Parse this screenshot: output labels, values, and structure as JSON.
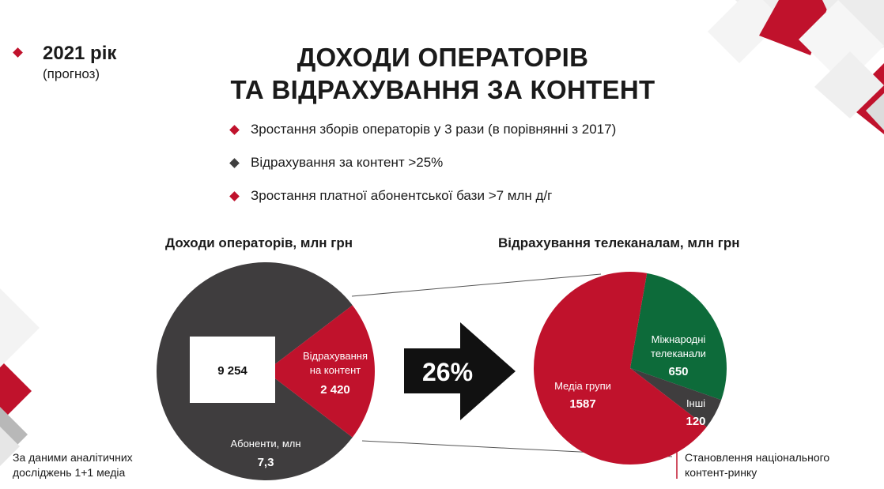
{
  "header": {
    "year": "2021 рік",
    "year_note": "(прогноз)",
    "title_line1": "ДОХОДИ ОПЕРАТОРІВ",
    "title_line2": "ТА ВІДРАХУВАННЯ ЗА КОНТЕНТ"
  },
  "bullets": [
    {
      "text": "Зростання зборів операторів у 3 рази (в порівнянні з 2017)",
      "color": "#c0122c"
    },
    {
      "text": "Відрахування за контент >25%",
      "color": "#3f3f3f"
    },
    {
      "text": "Зростання платної абонентської бази >7 млн д/г",
      "color": "#c0122c"
    }
  ],
  "arrow_label": "26%",
  "source_note": [
    "За даними аналітичних",
    "досліджень 1+1 медіа"
  ],
  "market_note": [
    "Становлення національного",
    "контент-ринку"
  ],
  "colors": {
    "red": "#c0122c",
    "dark": "#3f3d3e",
    "green": "#0d6b3a",
    "black": "#111111"
  },
  "chart_data": [
    {
      "type": "pie",
      "title": "Доходи операторів, млн грн",
      "slices": [
        {
          "label": "",
          "value": 9254,
          "value_label": "9 254",
          "color": "#3f3d3e"
        },
        {
          "label": "Відрахування на контент",
          "label_lines": [
            "Відрахування",
            "на контент"
          ],
          "value": 2420,
          "value_label": "2 420",
          "color": "#c0122c"
        }
      ],
      "extra_label": {
        "text": "Абоненти, млн",
        "value": "7,3"
      }
    },
    {
      "type": "pie",
      "title": "Відрахування телеканалам, млн грн",
      "slices": [
        {
          "label": "Міжнародні телеканали",
          "label_lines": [
            "Міжнародні",
            "телеканали"
          ],
          "value": 650,
          "value_label": "650",
          "color": "#0d6b3a"
        },
        {
          "label": "Інші",
          "label_lines": [
            "Інші"
          ],
          "value": 120,
          "value_label": "120",
          "color": "#3f3d3e"
        },
        {
          "label": "Медіа групи",
          "label_lines": [
            "Медіа групи"
          ],
          "value": 1587,
          "value_label": "1587",
          "color": "#c0122c"
        }
      ]
    }
  ]
}
